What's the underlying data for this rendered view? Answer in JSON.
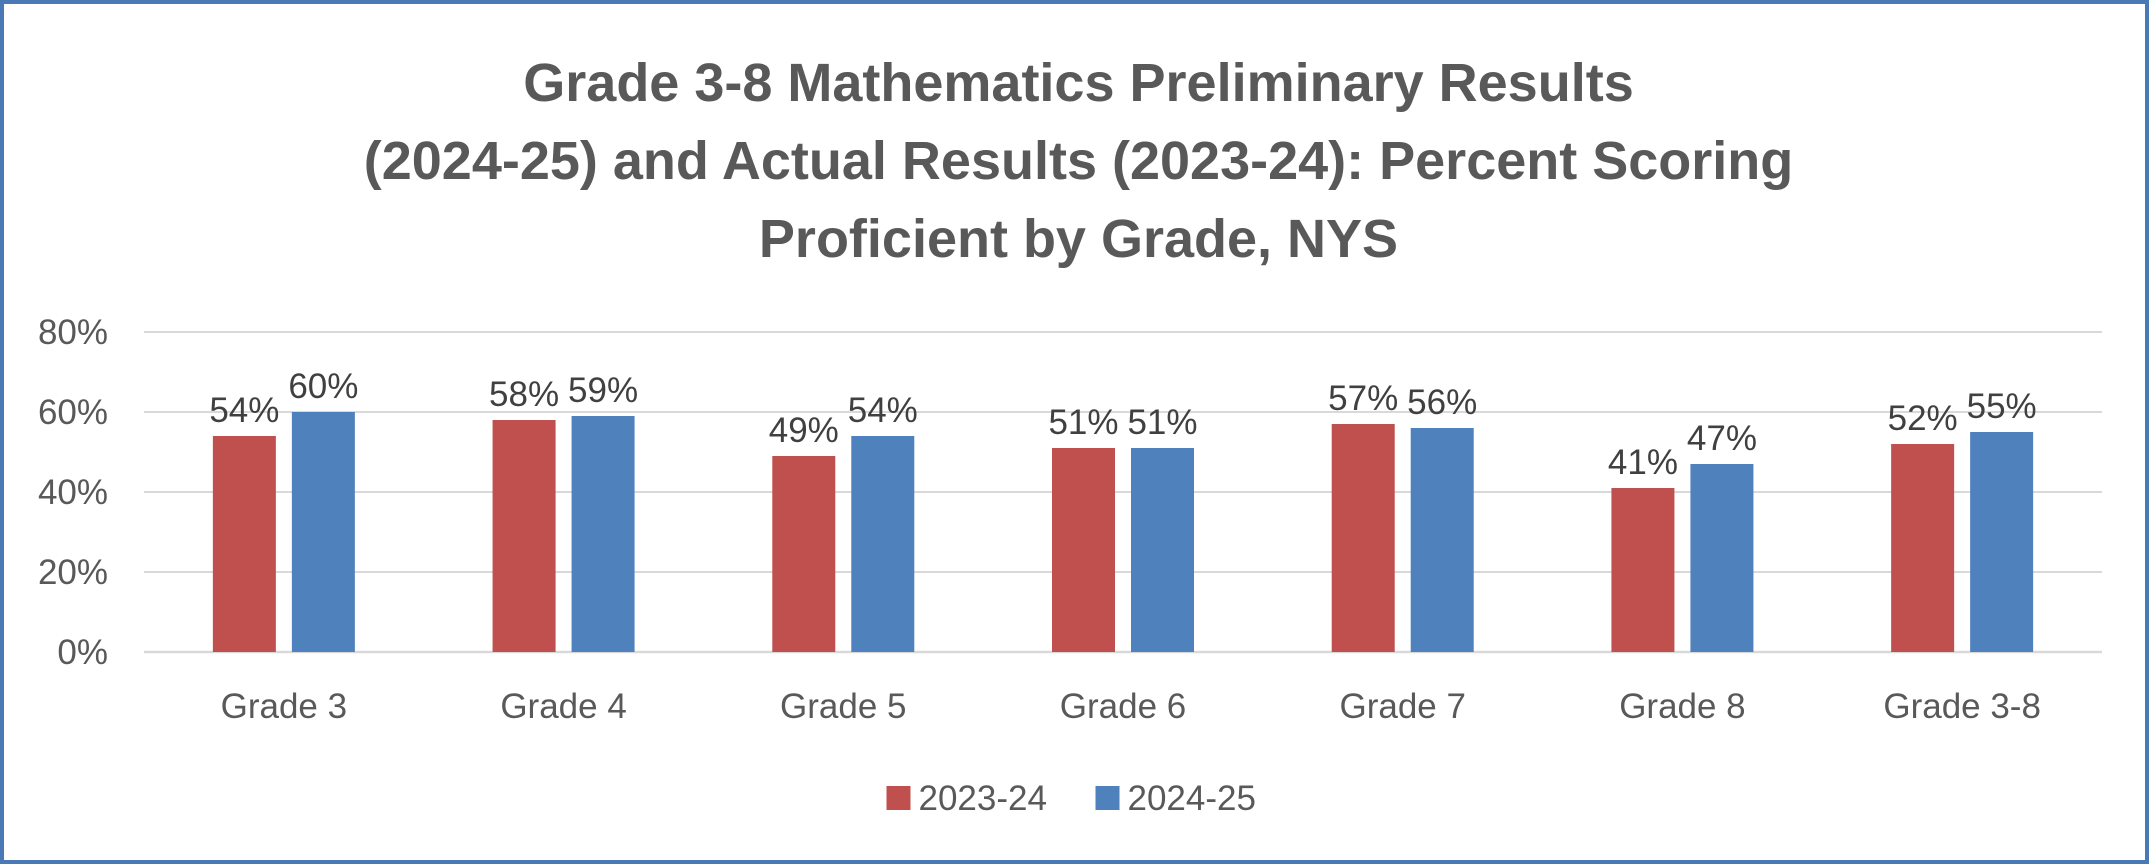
{
  "chart_data": {
    "type": "bar",
    "title_lines": [
      "Grade 3-8 Mathematics Preliminary Results",
      "(2024-25) and Actual Results (2023-24): Percent Scoring",
      "Proficient by Grade, NYS"
    ],
    "categories": [
      "Grade 3",
      "Grade 4",
      "Grade 5",
      "Grade 6",
      "Grade 7",
      "Grade 8",
      "Grade 3-8"
    ],
    "series": [
      {
        "name": "2023-24",
        "color": "#c0504d",
        "values": [
          54,
          58,
          49,
          51,
          57,
          41,
          52
        ],
        "labels": [
          "54%",
          "58%",
          "49%",
          "51%",
          "57%",
          "41%",
          "52%"
        ]
      },
      {
        "name": "2024-25",
        "color": "#4f81bd",
        "values": [
          60,
          59,
          54,
          51,
          56,
          47,
          55
        ],
        "labels": [
          "60%",
          "59%",
          "54%",
          "51%",
          "56%",
          "47%",
          "55%"
        ]
      }
    ],
    "ylim": [
      0,
      80
    ],
    "yticks": [
      0,
      20,
      40,
      60,
      80
    ],
    "ytick_labels": [
      "0%",
      "20%",
      "40%",
      "60%",
      "80%"
    ],
    "grid": true,
    "legend_position": "bottom",
    "xlabel": "",
    "ylabel": ""
  }
}
